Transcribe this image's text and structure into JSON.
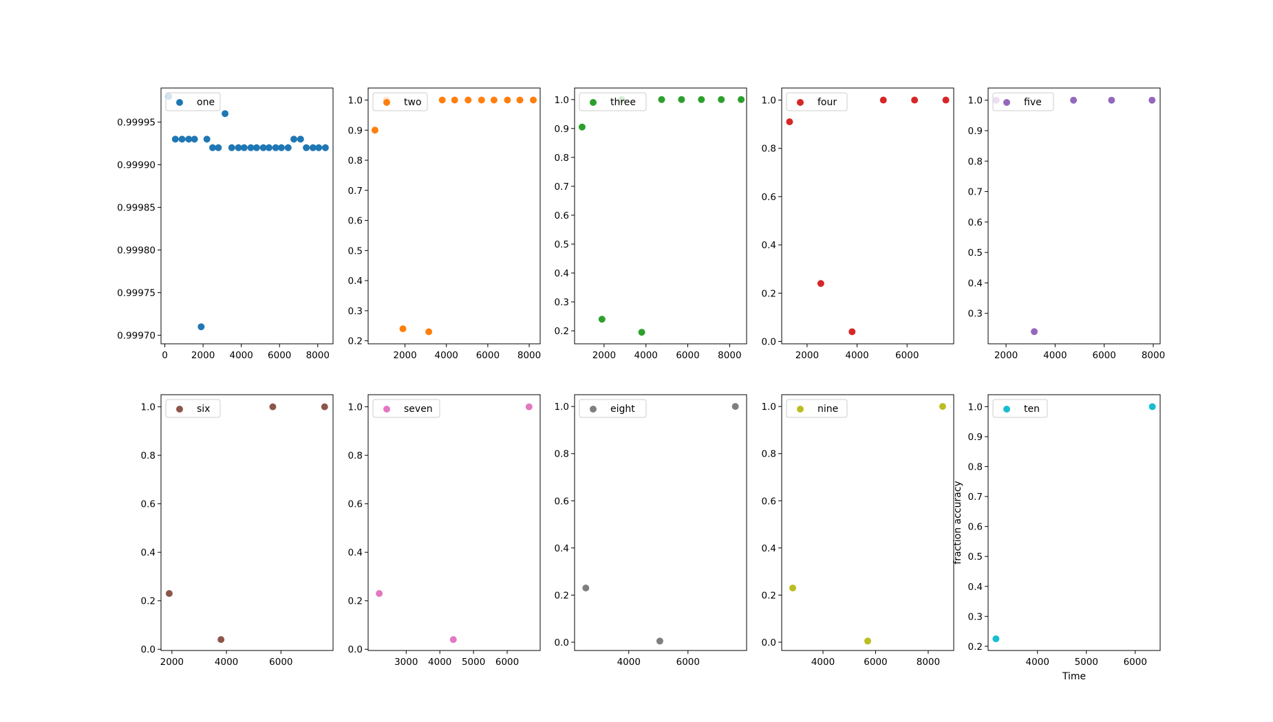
{
  "chart_data": [
    {
      "type": "scatter",
      "legend": "one",
      "legend_loc": "upper-left",
      "color": "#1f77b4",
      "x": [
        200,
        550,
        900,
        1250,
        1550,
        1900,
        2200,
        2500,
        2800,
        3150,
        3500,
        3850,
        4150,
        4500,
        4800,
        5150,
        5450,
        5800,
        6100,
        6450,
        6750,
        7100,
        7400,
        7750,
        8050,
        8400
      ],
      "y": [
        0.99998,
        0.99993,
        0.99993,
        0.99993,
        0.99993,
        0.99971,
        0.99993,
        0.99992,
        0.99992,
        0.99996,
        0.99992,
        0.99992,
        0.99992,
        0.99992,
        0.99992,
        0.99992,
        0.99992,
        0.99992,
        0.99992,
        0.99992,
        0.99993,
        0.99993,
        0.99992,
        0.99992,
        0.99992,
        0.99992
      ],
      "xlim": [
        -200,
        8800
      ],
      "ylim": [
        0.99969,
        0.99999
      ],
      "xticks": [
        0,
        2000,
        4000,
        6000,
        8000
      ],
      "xtick_labels": [
        "0",
        "2000",
        "4000",
        "6000",
        "8000"
      ],
      "yticks": [
        0.9997,
        0.99975,
        0.9998,
        0.99985,
        0.9999,
        0.99995
      ],
      "ytick_labels": [
        "0.99970",
        "0.99975",
        "0.99980",
        "0.99985",
        "0.99990",
        "0.99995"
      ],
      "xlabel": "",
      "ylabel": ""
    },
    {
      "type": "scatter",
      "legend": "two",
      "legend_loc": "upper-left",
      "color": "#ff7f0e",
      "x": [
        550,
        1100,
        1900,
        3150,
        3800,
        4400,
        5050,
        5700,
        6300,
        6950,
        7550,
        8200
      ],
      "y": [
        0.9,
        1.0,
        0.24,
        0.23,
        1.0,
        1.0,
        1.0,
        1.0,
        1.0,
        1.0,
        1.0,
        1.0
      ],
      "xlim": [
        220,
        8530
      ],
      "ylim": [
        0.19,
        1.04
      ],
      "xticks": [
        2000,
        4000,
        6000,
        8000
      ],
      "xtick_labels": [
        "2000",
        "4000",
        "6000",
        "8000"
      ],
      "yticks": [
        0.2,
        0.3,
        0.4,
        0.5,
        0.6,
        0.7,
        0.8,
        0.9,
        1.0
      ],
      "ytick_labels": [
        "0.2",
        "0.3",
        "0.4",
        "0.5",
        "0.6",
        "0.7",
        "0.8",
        "0.9",
        "1.0"
      ],
      "xlabel": "",
      "ylabel": ""
    },
    {
      "type": "scatter",
      "legend": "three",
      "legend_loc": "upper-left",
      "color": "#2ca02c",
      "x": [
        950,
        1900,
        2850,
        3800,
        4750,
        5700,
        6650,
        7600,
        8550
      ],
      "y": [
        0.905,
        0.24,
        1.0,
        0.195,
        1.0,
        1.0,
        1.0,
        1.0,
        1.0
      ],
      "xlim": [
        590,
        8810
      ],
      "ylim": [
        0.155,
        1.04
      ],
      "xticks": [
        2000,
        4000,
        6000,
        8000
      ],
      "xtick_labels": [
        "2000",
        "4000",
        "6000",
        "8000"
      ],
      "yticks": [
        0.2,
        0.3,
        0.4,
        0.5,
        0.6,
        0.7,
        0.8,
        0.9,
        1.0
      ],
      "ytick_labels": [
        "0.2",
        "0.3",
        "0.4",
        "0.5",
        "0.6",
        "0.7",
        "0.8",
        "0.9",
        "1.0"
      ],
      "xlabel": "",
      "ylabel": ""
    },
    {
      "type": "scatter",
      "legend": "four",
      "legend_loc": "upper-left",
      "color": "#d62728",
      "x": [
        1300,
        2550,
        3800,
        5050,
        6300,
        7550
      ],
      "y": [
        0.91,
        0.24,
        0.04,
        1.0,
        1.0,
        1.0
      ],
      "xlim": [
        985,
        7865
      ],
      "ylim": [
        -0.01,
        1.05
      ],
      "xticks": [
        2000,
        4000,
        6000
      ],
      "xtick_labels": [
        "2000",
        "4000",
        "6000"
      ],
      "yticks": [
        0.0,
        0.2,
        0.4,
        0.6,
        0.8,
        1.0
      ],
      "ytick_labels": [
        "0.0",
        "0.2",
        "0.4",
        "0.6",
        "0.8",
        "1.0"
      ],
      "xlabel": "",
      "ylabel": ""
    },
    {
      "type": "scatter",
      "legend": "five",
      "legend_loc": "upper-left",
      "color": "#9467bd",
      "x": [
        1600,
        3150,
        4750,
        6300,
        7950
      ],
      "y": [
        1.0,
        0.24,
        1.0,
        1.0,
        1.0
      ],
      "xlim": [
        1270,
        8280
      ],
      "ylim": [
        0.2,
        1.04
      ],
      "xticks": [
        2000,
        4000,
        6000,
        8000
      ],
      "xtick_labels": [
        "2000",
        "4000",
        "6000",
        "8000"
      ],
      "yticks": [
        0.3,
        0.4,
        0.5,
        0.6,
        0.7,
        0.8,
        0.9,
        1.0
      ],
      "ytick_labels": [
        "0.3",
        "0.4",
        "0.5",
        "0.6",
        "0.7",
        "0.8",
        "0.9",
        "1.0"
      ],
      "xlabel": "",
      "ylabel": ""
    },
    {
      "type": "scatter",
      "legend": "six",
      "legend_loc": "upper-left",
      "color": "#8c564b",
      "x": [
        1900,
        3800,
        5700,
        7600
      ],
      "y": [
        0.23,
        0.04,
        1.0,
        1.0
      ],
      "xlim": [
        1600,
        7910
      ],
      "ylim": [
        -0.005,
        1.05
      ],
      "xticks": [
        2000,
        4000,
        6000
      ],
      "xtick_labels": [
        "2000",
        "4000",
        "6000"
      ],
      "yticks": [
        0.0,
        0.2,
        0.4,
        0.6,
        0.8,
        1.0
      ],
      "ytick_labels": [
        "0.0",
        "0.2",
        "0.4",
        "0.6",
        "0.8",
        "1.0"
      ],
      "xlabel": "",
      "ylabel": ""
    },
    {
      "type": "scatter",
      "legend": "seven",
      "legend_loc": "upper-left",
      "color": "#e377c2",
      "x": [
        2200,
        4400,
        6650
      ],
      "y": [
        0.23,
        0.04,
        1.0
      ],
      "xlim": [
        1870,
        6980
      ],
      "ylim": [
        -0.005,
        1.05
      ],
      "xticks": [
        3000,
        4000,
        5000,
        6000
      ],
      "xtick_labels": [
        "3000",
        "4000",
        "5000",
        "6000"
      ],
      "yticks": [
        0.0,
        0.2,
        0.4,
        0.6,
        0.8,
        1.0
      ],
      "ytick_labels": [
        "0.0",
        "0.2",
        "0.4",
        "0.6",
        "0.8",
        "1.0"
      ],
      "xlabel": "",
      "ylabel": ""
    },
    {
      "type": "scatter",
      "legend": "eight",
      "legend_loc": "upper-left",
      "color": "#7f7f7f",
      "x": [
        2550,
        5050,
        7600
      ],
      "y": [
        0.23,
        0.005,
        1.0
      ],
      "xlim": [
        2170,
        7980
      ],
      "ylim": [
        -0.035,
        1.05
      ],
      "xticks": [
        4000,
        6000
      ],
      "xtick_labels": [
        "4000",
        "6000"
      ],
      "yticks": [
        0.0,
        0.2,
        0.4,
        0.6,
        0.8,
        1.0
      ],
      "ytick_labels": [
        "0.0",
        "0.2",
        "0.4",
        "0.6",
        "0.8",
        "1.0"
      ],
      "xlabel": "",
      "ylabel": ""
    },
    {
      "type": "scatter",
      "legend": "nine",
      "legend_loc": "upper-left",
      "color": "#bcbd22",
      "x": [
        2850,
        5700,
        8550
      ],
      "y": [
        0.23,
        0.005,
        1.0
      ],
      "xlim": [
        2430,
        8970
      ],
      "ylim": [
        -0.035,
        1.05
      ],
      "xticks": [
        4000,
        6000,
        8000
      ],
      "xtick_labels": [
        "4000",
        "6000",
        "8000"
      ],
      "yticks": [
        0.0,
        0.2,
        0.4,
        0.6,
        0.8,
        1.0
      ],
      "ytick_labels": [
        "0.0",
        "0.2",
        "0.4",
        "0.6",
        "0.8",
        "1.0"
      ],
      "xlabel": "",
      "ylabel": ""
    },
    {
      "type": "scatter",
      "legend": "ten",
      "legend_loc": "upper-left",
      "color": "#17becf",
      "x": [
        3150,
        6350
      ],
      "y": [
        0.225,
        1.0
      ],
      "xlim": [
        2990,
        6510
      ],
      "ylim": [
        0.186,
        1.04
      ],
      "xticks": [
        4000,
        5000,
        6000
      ],
      "xtick_labels": [
        "4000",
        "5000",
        "6000"
      ],
      "yticks": [
        0.2,
        0.3,
        0.4,
        0.5,
        0.6,
        0.7,
        0.8,
        0.9,
        1.0
      ],
      "ytick_labels": [
        "0.2",
        "0.3",
        "0.4",
        "0.5",
        "0.6",
        "0.7",
        "0.8",
        "0.9",
        "1.0"
      ],
      "xlabel": "Time",
      "ylabel": "fraction accuracy"
    }
  ]
}
